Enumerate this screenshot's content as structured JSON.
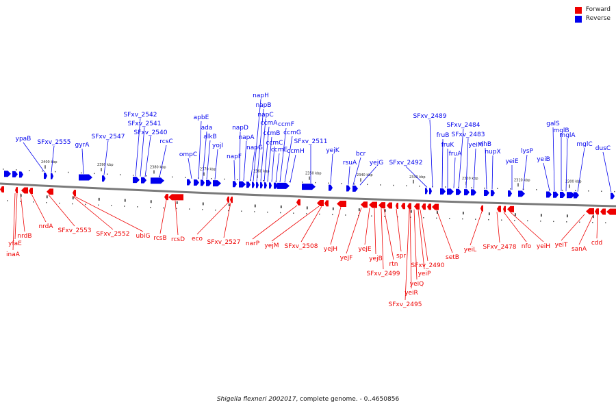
{
  "legend": {
    "forward_label": "Forward",
    "reverse_label": "Reverse",
    "forward_color": "#ee0000",
    "reverse_color": "#0000ee"
  },
  "caption": {
    "organism": "Shigella flexneri 2002017",
    "suffix": ", complete genome. - 0..4650856"
  },
  "kbp_ticks": [
    "2400 kbp",
    "2390 kbp",
    "2380 kbp",
    "2370 kbp",
    "2360 kbp",
    "2350 kbp",
    "2340 kbp",
    "2330 kbp",
    "2320 kbp",
    "2310 kbp",
    "2300 kbp"
  ],
  "reverse_genes": [
    "ypaB",
    "SFxv_2555",
    "gyrA",
    "SFxv_2547",
    "SFxv_2542",
    "SFxv_2541",
    "SFxv_2540",
    "rcsC",
    "ompC",
    "apbE",
    "ada",
    "alkB",
    "yojI",
    "napF",
    "napD",
    "napA",
    "napG",
    "napH",
    "napB",
    "napC",
    "ccmA",
    "ccmB",
    "ccmC",
    "ccmE",
    "ccmF",
    "ccmG",
    "ccmH",
    "SFxv_2511",
    "yejK",
    "rsuA",
    "bcr",
    "yejG",
    "SFxv_2492",
    "SFxv_2489",
    "fruB",
    "fruK",
    "fruA",
    "SFxv_2484",
    "SFxv_2483",
    "yeiM",
    "rihB",
    "nupX",
    "yeiE",
    "lysP",
    "yeiB",
    "galS",
    "mglB",
    "mglA",
    "mglC",
    "dusC"
  ],
  "forward_genes": [
    "inaA",
    "yfaE",
    "nrdB",
    "nrdA",
    "SFxv_2553",
    "SFxv_2552",
    "ubiG",
    "rcsB",
    "rcsD",
    "eco",
    "SFxv_2527",
    "narP",
    "yejM",
    "SFxv_2508",
    "yejH",
    "yejF",
    "yejE",
    "yejB",
    "SFxv_2499",
    "rtn",
    "spr",
    "yeiR",
    "SFxv_2495",
    "yeiQ",
    "yeiP",
    "SFxv_2490",
    "setB",
    "yeiL",
    "SFxv_2478",
    "nfo",
    "yeiH",
    "yeiT",
    "sanA",
    "cdd"
  ]
}
